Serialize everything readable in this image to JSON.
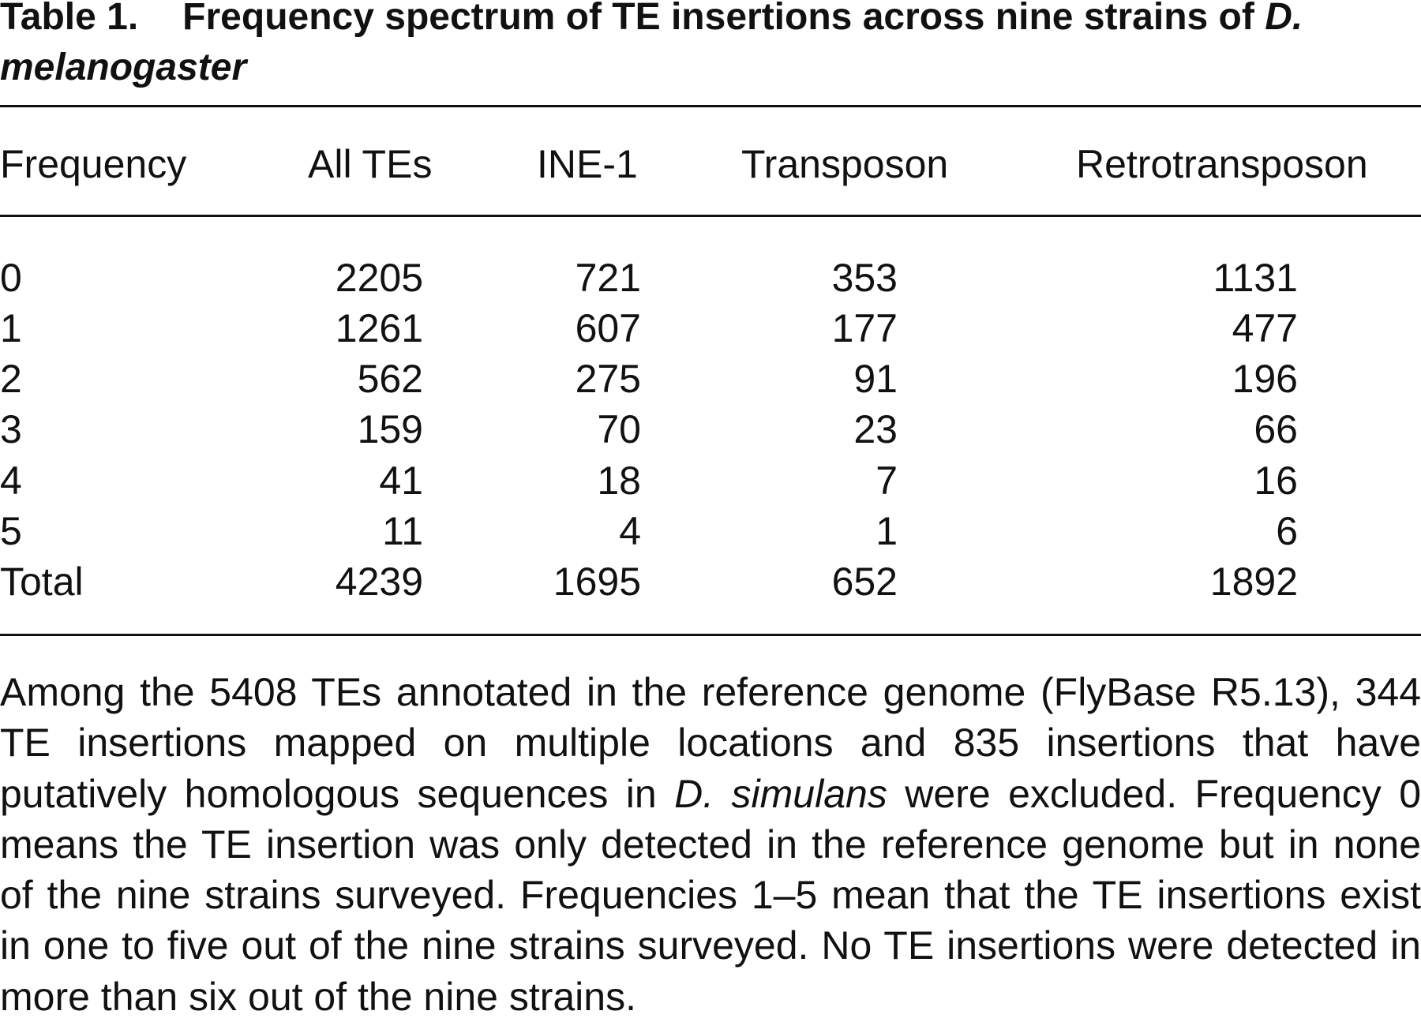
{
  "caption": {
    "label": "Table 1.",
    "title": "Frequency spectrum of TE insertions across nine strains of",
    "species": "D. melanogaster"
  },
  "table": {
    "header": [
      "Frequency",
      "All TEs",
      "INE-1",
      "Transposon",
      "Retrotransposon"
    ],
    "rows": [
      [
        "0",
        2205,
        721,
        353,
        1131
      ],
      [
        "1",
        1261,
        607,
        177,
        477
      ],
      [
        "2",
        562,
        275,
        91,
        196
      ],
      [
        "3",
        159,
        70,
        23,
        66
      ],
      [
        "4",
        41,
        18,
        7,
        16
      ],
      [
        "5",
        11,
        4,
        1,
        6
      ],
      [
        "Total",
        4239,
        1695,
        652,
        1892
      ]
    ]
  },
  "footnote": {
    "parts": [
      "Among the 5408 TEs annotated in the reference genome (FlyBase R5.13), 344 TE insertions mapped on multiple locations and 835 insertions that have putatively homologous sequences in",
      "D. simulans",
      "were excluded. Frequency 0 means the TE insertion was only detected in the reference genome but in none of the nine strains surveyed. Frequencies 1–5 mean that the TE insertions exist in one to five out of the nine strains surveyed. No TE insertions were detected in more than six out of the nine strains."
    ]
  }
}
